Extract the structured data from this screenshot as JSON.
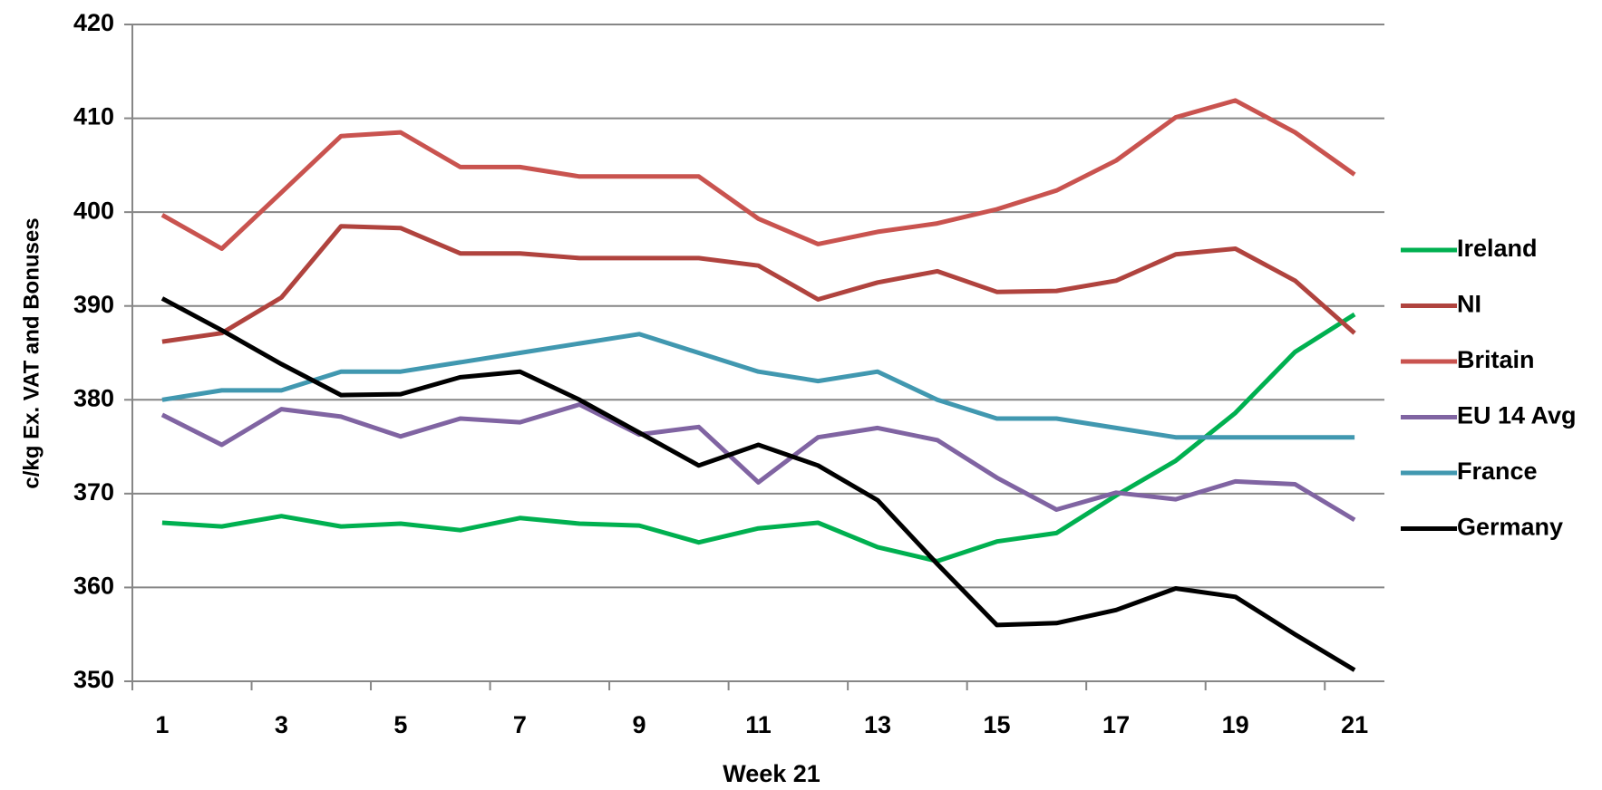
{
  "chart_data": {
    "type": "line",
    "x_label": "Week 21",
    "y_label": "c/kg Ex. VAT and Bonuses",
    "categories": [
      "1",
      null,
      "3",
      null,
      "5",
      null,
      "7",
      null,
      "9",
      null,
      "11",
      null,
      "13",
      null,
      "15",
      null,
      "17",
      null,
      "19",
      null,
      "21"
    ],
    "series": [
      {
        "name": "Ireland",
        "color": "#00b050",
        "values": [
          366.9,
          366.5,
          367.6,
          366.5,
          366.8,
          366.1,
          367.4,
          366.8,
          366.6,
          364.8,
          366.3,
          366.9,
          364.3,
          362.8,
          364.9,
          365.8,
          369.8,
          373.5,
          378.6,
          385.1,
          389.1
        ]
      },
      {
        "name": "NI",
        "color": "#b0433e",
        "values": [
          386.2,
          387.1,
          390.9,
          398.5,
          398.3,
          395.6,
          395.6,
          395.1,
          395.1,
          395.1,
          394.3,
          390.7,
          392.5,
          393.7,
          391.5,
          391.6,
          392.7,
          395.5,
          396.1,
          392.7,
          387.1
        ]
      },
      {
        "name": "Britain",
        "color": "#c9534f",
        "values": [
          399.7,
          396.1,
          402.1,
          408.1,
          408.5,
          404.8,
          404.8,
          403.8,
          403.8,
          403.8,
          399.3,
          396.6,
          397.9,
          398.8,
          400.3,
          402.3,
          405.5,
          410.1,
          411.9,
          408.5,
          404.0
        ]
      },
      {
        "name": "EU 14 Avg",
        "color": "#8064a2",
        "values": [
          378.4,
          375.2,
          379.0,
          378.2,
          376.1,
          378.0,
          377.6,
          379.5,
          376.3,
          377.1,
          371.2,
          376.0,
          377.0,
          375.7,
          371.7,
          368.3,
          370.1,
          369.4,
          371.3,
          371.0,
          367.2
        ]
      },
      {
        "name": "France",
        "color": "#4198b0",
        "values": [
          380,
          381,
          381,
          383,
          383,
          384,
          385,
          386,
          387,
          385,
          383,
          382,
          383,
          380,
          378,
          378,
          377,
          376,
          376,
          376,
          376
        ]
      },
      {
        "name": "Germany",
        "color": "#000000",
        "values": [
          390.8,
          387.4,
          383.8,
          380.5,
          380.6,
          382.4,
          383.0,
          380.0,
          376.5,
          373.0,
          375.2,
          373.0,
          369.3,
          362.5,
          356.0,
          356.2,
          357.6,
          359.9,
          359.0,
          355.0,
          351.2
        ]
      }
    ],
    "ylim": [
      350,
      420
    ],
    "yticks": [
      350,
      360,
      370,
      380,
      390,
      400,
      410,
      420
    ],
    "grid": true,
    "legend": "right"
  }
}
